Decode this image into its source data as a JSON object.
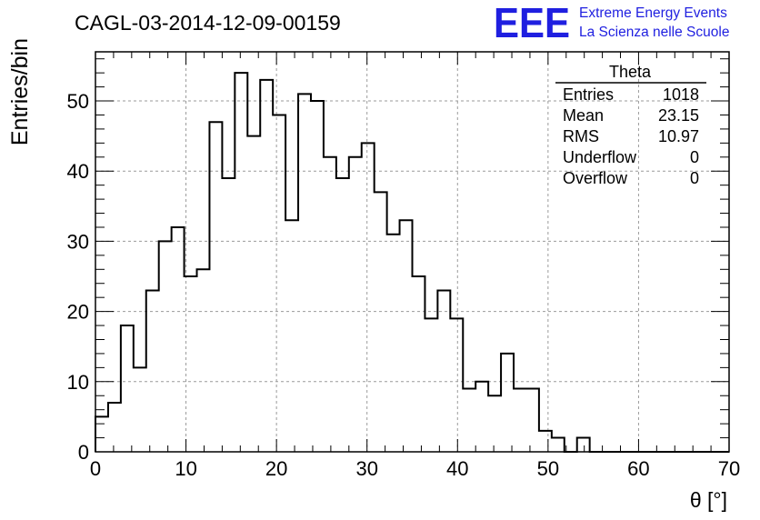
{
  "title": "CAGL-03-2014-12-09-00159",
  "logo": {
    "mark": "EEE",
    "line1": "Extreme Energy Events",
    "line2": "La Scienza nelle Scuole",
    "color": "#1f1fe0"
  },
  "stats": {
    "name": "Theta",
    "rows": [
      {
        "label": "Entries",
        "value": "1018"
      },
      {
        "label": "Mean",
        "value": "23.15"
      },
      {
        "label": "RMS",
        "value": "10.97"
      },
      {
        "label": "Underflow",
        "value": "0"
      },
      {
        "label": "Overflow",
        "value": "0"
      }
    ]
  },
  "chart_data": {
    "type": "bar",
    "histogram": true,
    "bin_width": 1.4,
    "x_start": 0,
    "values": [
      5,
      7,
      18,
      12,
      23,
      30,
      32,
      25,
      26,
      47,
      39,
      54,
      45,
      53,
      48,
      33,
      51,
      50,
      42,
      39,
      42,
      44,
      37,
      31,
      33,
      25,
      19,
      23,
      19,
      9,
      10,
      8,
      14,
      9,
      9,
      3,
      2,
      0,
      2,
      0,
      0,
      0,
      0,
      0,
      0,
      0,
      0,
      0,
      0,
      0
    ],
    "xlabel": "θ [°]",
    "ylabel": "Entries/bin",
    "xlim": [
      0,
      70
    ],
    "ylim": [
      0,
      57
    ],
    "xticks": [
      0,
      10,
      20,
      30,
      40,
      50,
      60,
      70
    ],
    "yticks": [
      0,
      10,
      20,
      30,
      40,
      50
    ],
    "grid": true,
    "line_color": "#000000"
  }
}
